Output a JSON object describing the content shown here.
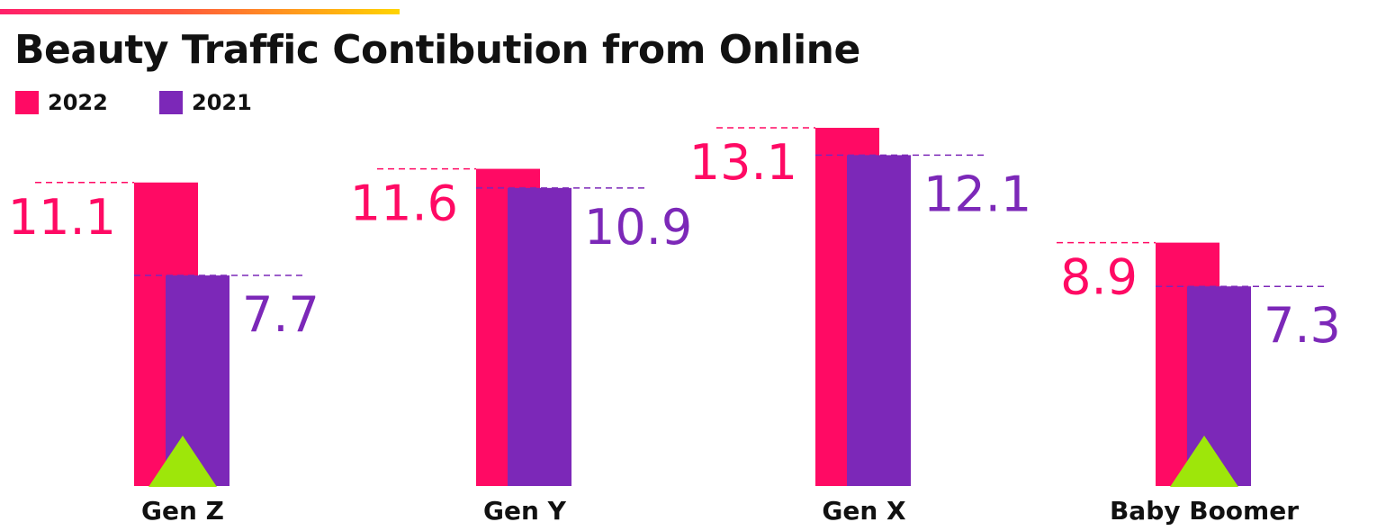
{
  "title": "Beauty Traffic Contibution from Online",
  "colors": {
    "series_2022": "#ff0a64",
    "series_2021": "#7c28b8",
    "marker": "#9ee60a",
    "accent_start": "#ff1f6a",
    "accent_end": "#ffd400"
  },
  "legend": [
    {
      "label": "2022",
      "color": "#ff0a64"
    },
    {
      "label": "2021",
      "color": "#7c28b8"
    }
  ],
  "chart_data": {
    "type": "bar",
    "title": "Beauty Traffic Contibution from Online",
    "categories": [
      "Gen Z",
      "Gen Y",
      "Gen X",
      "Baby Boomer"
    ],
    "series": [
      {
        "name": "2022",
        "values": [
          11.1,
          11.6,
          13.1,
          8.9
        ],
        "labels": [
          "11.1",
          "11.6",
          "13.1",
          "8.9"
        ]
      },
      {
        "name": "2021",
        "values": [
          7.7,
          10.9,
          12.1,
          7.3
        ],
        "labels": [
          "7.7",
          "10.9",
          "12.1",
          "7.3"
        ]
      }
    ],
    "markers": [
      {
        "category": "Gen Z",
        "icon": "up-triangle-icon"
      },
      {
        "category": "Baby Boomer",
        "icon": "up-triangle-icon"
      }
    ],
    "grid": false,
    "legend_position": "top-left",
    "ylim": [
      0,
      13.1
    ]
  }
}
